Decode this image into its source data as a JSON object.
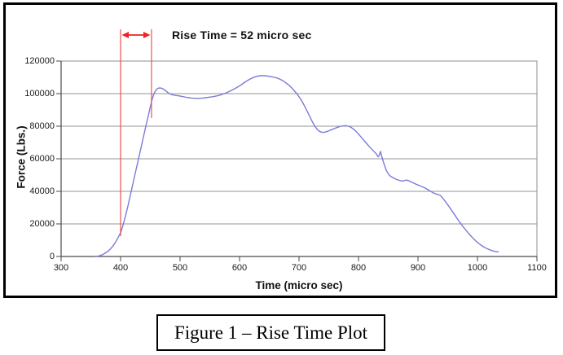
{
  "figure": {
    "caption": "Figure 1 – Rise Time Plot"
  },
  "colors": {
    "series_line": "#7b7bd8",
    "annotation_red": "#ee2222",
    "annotation_line_red": "#f05050",
    "gridline": "#949494",
    "plot_border": "#8f8f8f",
    "axis": "#4a4a4a",
    "text": "#1a1a1a",
    "frame": "#000000"
  },
  "chart_data": {
    "type": "line",
    "title": "",
    "xlabel": "Time (micro sec)",
    "ylabel": "Force (Lbs.)",
    "xlim": [
      300,
      1100
    ],
    "ylim": [
      0,
      120000
    ],
    "x_ticks": [
      300,
      400,
      500,
      600,
      700,
      800,
      900,
      1000,
      1100
    ],
    "y_ticks": [
      0,
      20000,
      40000,
      60000,
      80000,
      100000,
      120000
    ],
    "grid": "horizontal",
    "legend": "none",
    "annotation": {
      "label": "Rise Time = 52 micro sec",
      "rise_time_micro_sec": 52,
      "start_t": 400,
      "end_t": 452,
      "line1_y_span": [
        36,
        290
      ],
      "line2_y_span": [
        36,
        145
      ],
      "arrow_y": 43
    },
    "series": [
      {
        "name": "Force",
        "color": "#7b7bd8",
        "points": [
          [
            358,
            0
          ],
          [
            362,
            200
          ],
          [
            366,
            600
          ],
          [
            370,
            1200
          ],
          [
            374,
            2000
          ],
          [
            378,
            3000
          ],
          [
            382,
            4300
          ],
          [
            386,
            5900
          ],
          [
            390,
            7900
          ],
          [
            394,
            10400
          ],
          [
            397,
            12400
          ],
          [
            400,
            14500
          ],
          [
            404,
            19000
          ],
          [
            408,
            24500
          ],
          [
            412,
            30500
          ],
          [
            416,
            37000
          ],
          [
            420,
            43500
          ],
          [
            424,
            50000
          ],
          [
            428,
            56500
          ],
          [
            432,
            63000
          ],
          [
            436,
            69500
          ],
          [
            440,
            76000
          ],
          [
            444,
            82500
          ],
          [
            447,
            87000
          ],
          [
            450,
            92000
          ],
          [
            453,
            96500
          ],
          [
            456,
            99800
          ],
          [
            459,
            102000
          ],
          [
            462,
            103100
          ],
          [
            465,
            103500
          ],
          [
            468,
            103400
          ],
          [
            471,
            103000
          ],
          [
            475,
            102000
          ],
          [
            479,
            100800
          ],
          [
            483,
            99800
          ],
          [
            487,
            99300
          ],
          [
            491,
            99000
          ],
          [
            495,
            98800
          ],
          [
            499,
            98600
          ],
          [
            503,
            98300
          ],
          [
            507,
            98000
          ],
          [
            511,
            97700
          ],
          [
            515,
            97500
          ],
          [
            519,
            97300
          ],
          [
            523,
            97200
          ],
          [
            527,
            97100
          ],
          [
            531,
            97100
          ],
          [
            535,
            97200
          ],
          [
            539,
            97300
          ],
          [
            543,
            97500
          ],
          [
            547,
            97700
          ],
          [
            551,
            97900
          ],
          [
            555,
            98100
          ],
          [
            559,
            98400
          ],
          [
            563,
            98700
          ],
          [
            567,
            99100
          ],
          [
            571,
            99600
          ],
          [
            575,
            100100
          ],
          [
            579,
            100700
          ],
          [
            583,
            101400
          ],
          [
            587,
            102100
          ],
          [
            591,
            102900
          ],
          [
            595,
            103700
          ],
          [
            599,
            104600
          ],
          [
            603,
            105500
          ],
          [
            607,
            106500
          ],
          [
            611,
            107500
          ],
          [
            615,
            108400
          ],
          [
            619,
            109200
          ],
          [
            623,
            109900
          ],
          [
            627,
            110400
          ],
          [
            631,
            110800
          ],
          [
            635,
            111000
          ],
          [
            639,
            111100
          ],
          [
            643,
            111000
          ],
          [
            647,
            110800
          ],
          [
            651,
            110600
          ],
          [
            655,
            110300
          ],
          [
            659,
            110000
          ],
          [
            663,
            109600
          ],
          [
            667,
            109000
          ],
          [
            671,
            108300
          ],
          [
            675,
            107400
          ],
          [
            679,
            106300
          ],
          [
            683,
            105200
          ],
          [
            687,
            103800
          ],
          [
            691,
            102200
          ],
          [
            695,
            100500
          ],
          [
            699,
            98600
          ],
          [
            703,
            96500
          ],
          [
            707,
            94000
          ],
          [
            711,
            91200
          ],
          [
            715,
            88200
          ],
          [
            719,
            85200
          ],
          [
            723,
            82300
          ],
          [
            727,
            79800
          ],
          [
            731,
            77900
          ],
          [
            735,
            76700
          ],
          [
            739,
            76200
          ],
          [
            743,
            76300
          ],
          [
            747,
            76700
          ],
          [
            751,
            77300
          ],
          [
            755,
            77900
          ],
          [
            759,
            78500
          ],
          [
            763,
            79100
          ],
          [
            767,
            79600
          ],
          [
            771,
            80000
          ],
          [
            775,
            80300
          ],
          [
            779,
            80300
          ],
          [
            783,
            80000
          ],
          [
            787,
            79400
          ],
          [
            791,
            78400
          ],
          [
            795,
            77100
          ],
          [
            799,
            75600
          ],
          [
            803,
            73900
          ],
          [
            807,
            72200
          ],
          [
            811,
            70500
          ],
          [
            815,
            68800
          ],
          [
            819,
            67100
          ],
          [
            823,
            65600
          ],
          [
            827,
            64100
          ],
          [
            830,
            63000
          ],
          [
            833,
            61200
          ],
          [
            835,
            62200
          ],
          [
            837,
            64500
          ],
          [
            839,
            61500
          ],
          [
            842,
            57800
          ],
          [
            845,
            54500
          ],
          [
            848,
            52000
          ],
          [
            852,
            49800
          ],
          [
            856,
            48800
          ],
          [
            860,
            48000
          ],
          [
            864,
            47300
          ],
          [
            868,
            46800
          ],
          [
            872,
            46400
          ],
          [
            875,
            46300
          ],
          [
            878,
            46700
          ],
          [
            881,
            46900
          ],
          [
            884,
            46600
          ],
          [
            888,
            45900
          ],
          [
            892,
            45200
          ],
          [
            896,
            44500
          ],
          [
            900,
            43900
          ],
          [
            904,
            43300
          ],
          [
            908,
            42700
          ],
          [
            912,
            42000
          ],
          [
            916,
            41200
          ],
          [
            920,
            40300
          ],
          [
            924,
            39400
          ],
          [
            928,
            38700
          ],
          [
            932,
            38200
          ],
          [
            935,
            37900
          ],
          [
            938,
            37400
          ],
          [
            944,
            34800
          ],
          [
            950,
            31800
          ],
          [
            956,
            28600
          ],
          [
            962,
            25400
          ],
          [
            968,
            22200
          ],
          [
            974,
            19200
          ],
          [
            980,
            16400
          ],
          [
            986,
            13800
          ],
          [
            992,
            11400
          ],
          [
            998,
            9300
          ],
          [
            1004,
            7500
          ],
          [
            1010,
            6000
          ],
          [
            1016,
            4800
          ],
          [
            1022,
            3900
          ],
          [
            1028,
            3200
          ],
          [
            1035,
            2800
          ]
        ]
      }
    ]
  }
}
